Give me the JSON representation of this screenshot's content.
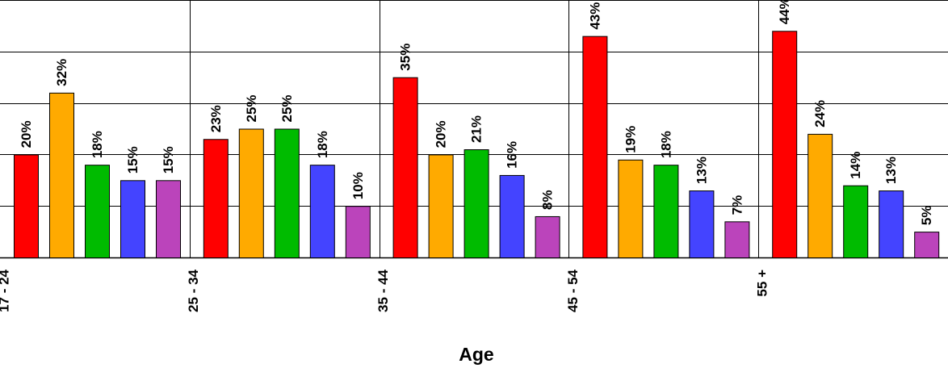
{
  "chart_data": {
    "type": "bar",
    "xlabel": "Age",
    "ylabel": "",
    "categories": [
      "17 - 24",
      "25 - 34",
      "35 - 44",
      "45 - 54",
      "55 +"
    ],
    "ylim": [
      0,
      50
    ],
    "grid": true,
    "series": [
      {
        "color": "#ff0000",
        "values": [
          20,
          23,
          35,
          43,
          44
        ]
      },
      {
        "color": "#ffaa00",
        "values": [
          32,
          25,
          20,
          19,
          24
        ]
      },
      {
        "color": "#00bb00",
        "values": [
          18,
          25,
          21,
          18,
          14
        ]
      },
      {
        "color": "#4444ff",
        "values": [
          15,
          18,
          16,
          13,
          13
        ]
      },
      {
        "color": "#bb44bb",
        "values": [
          15,
          10,
          8,
          7,
          5
        ]
      }
    ],
    "value_suffix": "%"
  }
}
